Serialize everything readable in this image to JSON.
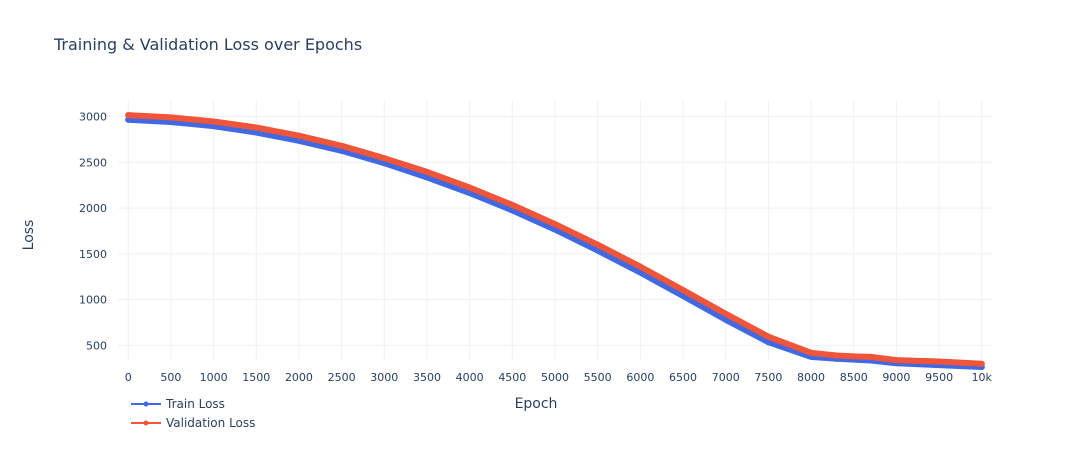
{
  "chart_data": {
    "type": "line",
    "title": "Training & Validation Loss over Epochs",
    "xlabel": "Epoch",
    "ylabel": "Loss",
    "xlim": [
      -120,
      10120
    ],
    "ylim": [
      330,
      3180
    ],
    "x_ticks": [
      0,
      500,
      1000,
      1500,
      2000,
      2500,
      3000,
      3500,
      4000,
      4500,
      5000,
      5500,
      6000,
      6500,
      7000,
      7500,
      8000,
      8500,
      9000,
      9500,
      10000
    ],
    "x_tick_labels": [
      "0",
      "500",
      "1000",
      "1500",
      "2000",
      "2500",
      "3000",
      "3500",
      "4000",
      "4500",
      "5000",
      "5500",
      "6000",
      "6500",
      "7000",
      "7500",
      "8000",
      "8500",
      "9000",
      "9500",
      "10k"
    ],
    "y_ticks": [
      500,
      1000,
      1500,
      2000,
      2500,
      3000
    ],
    "y_tick_labels": [
      "500",
      "1000",
      "1500",
      "2000",
      "2500",
      "3000"
    ],
    "grid": true,
    "legend_position": "bottom-left",
    "x": [
      0,
      500,
      1000,
      1500,
      2000,
      2500,
      3000,
      3500,
      4000,
      4500,
      5000,
      5500,
      6000,
      6500,
      7000,
      7500,
      8000,
      8300,
      8500,
      8700,
      9000,
      9500,
      10000
    ],
    "series": [
      {
        "name": "Train Loss",
        "color": "#4169e1",
        "values": [
          2965,
          2940,
          2895,
          2825,
          2735,
          2625,
          2490,
          2335,
          2165,
          1975,
          1765,
          1535,
          1295,
          1040,
          780,
          535,
          375,
          355,
          345,
          335,
          305,
          285,
          265
        ]
      },
      {
        "name": "Validation Loss",
        "color": "#ef553b",
        "values": [
          3015,
          2990,
          2945,
          2880,
          2790,
          2680,
          2545,
          2395,
          2225,
          2035,
          1825,
          1600,
          1360,
          1105,
          845,
          595,
          420,
          390,
          380,
          375,
          340,
          325,
          300
        ]
      }
    ]
  }
}
